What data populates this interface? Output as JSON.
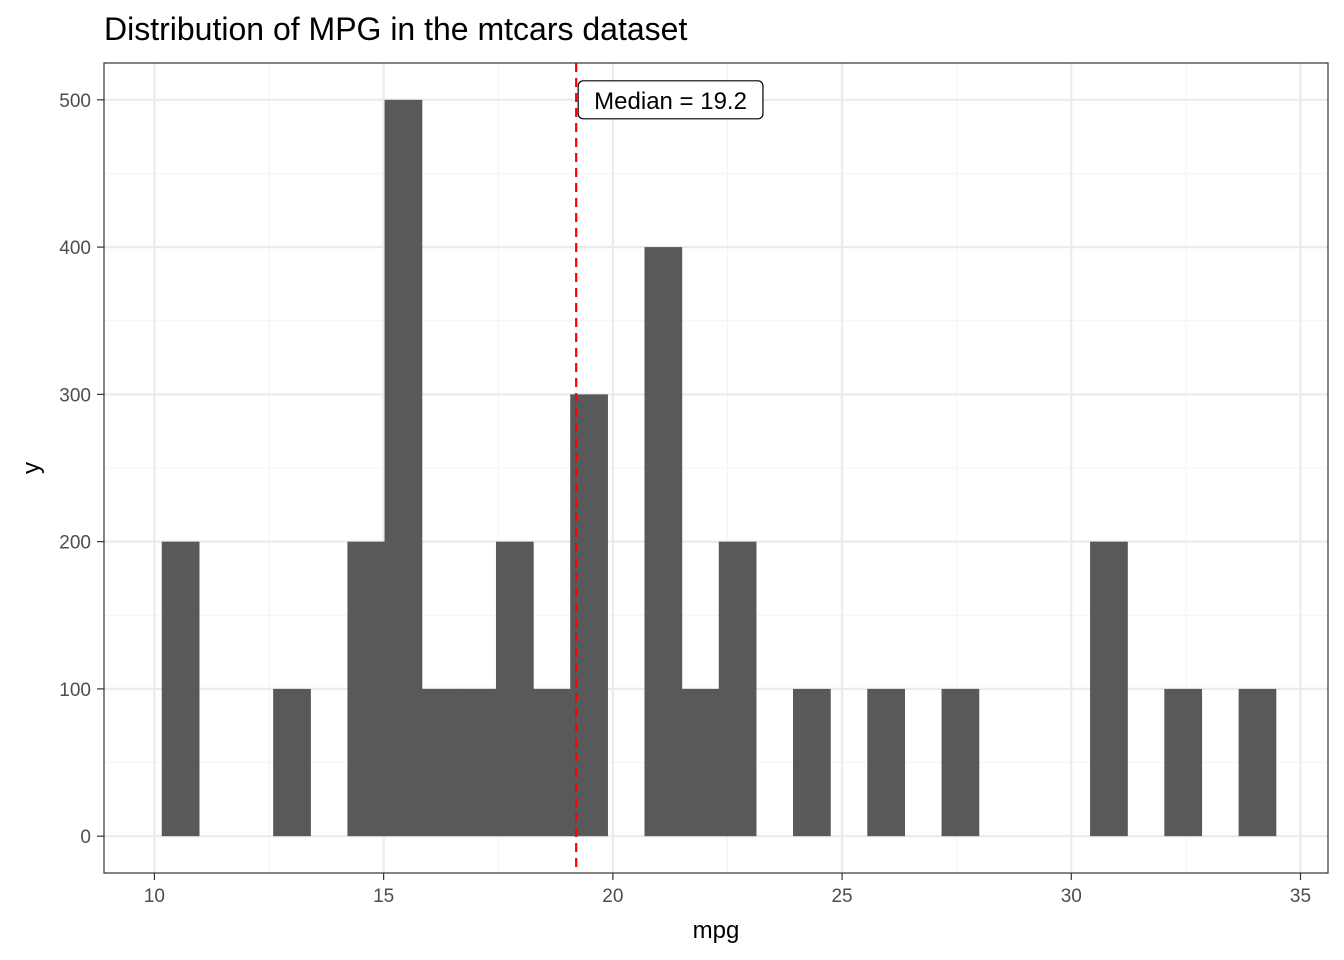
{
  "chart_data": {
    "type": "bar",
    "title": "Distribution of MPG in the mtcars dataset",
    "xlabel": "mpg",
    "ylabel": "y",
    "xlim": [
      8.9,
      35.6
    ],
    "ylim": [
      -25,
      525
    ],
    "x_ticks": [
      10,
      15,
      20,
      25,
      30,
      35
    ],
    "y_ticks": [
      0,
      100,
      200,
      300,
      400,
      500
    ],
    "bin_width": 0.81,
    "bins": [
      {
        "x_start": 10.16,
        "x_end": 10.97,
        "value": 200
      },
      {
        "x_start": 10.97,
        "x_end": 11.78,
        "value": 0
      },
      {
        "x_start": 11.78,
        "x_end": 12.59,
        "value": 0
      },
      {
        "x_start": 12.59,
        "x_end": 13.4,
        "value": 100
      },
      {
        "x_start": 13.4,
        "x_end": 14.21,
        "value": 0
      },
      {
        "x_start": 14.21,
        "x_end": 15.02,
        "value": 200
      },
      {
        "x_start": 15.02,
        "x_end": 15.83,
        "value": 500
      },
      {
        "x_start": 15.83,
        "x_end": 16.64,
        "value": 100
      },
      {
        "x_start": 16.64,
        "x_end": 17.45,
        "value": 100
      },
      {
        "x_start": 17.45,
        "x_end": 18.26,
        "value": 200
      },
      {
        "x_start": 18.26,
        "x_end": 19.07,
        "value": 100
      },
      {
        "x_start": 19.07,
        "x_end": 19.88,
        "value": 300
      },
      {
        "x_start": 19.88,
        "x_end": 20.69,
        "value": 0
      },
      {
        "x_start": 20.69,
        "x_end": 21.5,
        "value": 400
      },
      {
        "x_start": 21.5,
        "x_end": 22.31,
        "value": 100
      },
      {
        "x_start": 22.31,
        "x_end": 23.12,
        "value": 200
      },
      {
        "x_start": 23.12,
        "x_end": 23.93,
        "value": 0
      },
      {
        "x_start": 23.93,
        "x_end": 24.74,
        "value": 100
      },
      {
        "x_start": 24.74,
        "x_end": 25.55,
        "value": 0
      },
      {
        "x_start": 25.55,
        "x_end": 26.36,
        "value": 100
      },
      {
        "x_start": 26.36,
        "x_end": 27.17,
        "value": 0
      },
      {
        "x_start": 27.17,
        "x_end": 27.98,
        "value": 100
      },
      {
        "x_start": 27.98,
        "x_end": 28.79,
        "value": 0
      },
      {
        "x_start": 28.79,
        "x_end": 29.6,
        "value": 0
      },
      {
        "x_start": 29.6,
        "x_end": 30.41,
        "value": 0
      },
      {
        "x_start": 30.41,
        "x_end": 31.22,
        "value": 200
      },
      {
        "x_start": 31.22,
        "x_end": 32.03,
        "value": 0
      },
      {
        "x_start": 32.03,
        "x_end": 32.84,
        "value": 100
      },
      {
        "x_start": 32.84,
        "x_end": 33.65,
        "value": 0
      },
      {
        "x_start": 33.65,
        "x_end": 34.46,
        "value": 100
      }
    ],
    "median_line": {
      "x": 19.2,
      "style": "dashed",
      "color": "#ff0000"
    },
    "annotation": {
      "text": "Median = 19.2",
      "x": 19.2,
      "y": 500
    },
    "grid": true,
    "legend": "none",
    "colors": {
      "bar": "#595959",
      "panel_border": "#333333",
      "grid_major": "#ebebeb",
      "grid_minor": "#f4f4f4",
      "tick_label": "#4d4d4d",
      "median": "#ff0000"
    }
  }
}
